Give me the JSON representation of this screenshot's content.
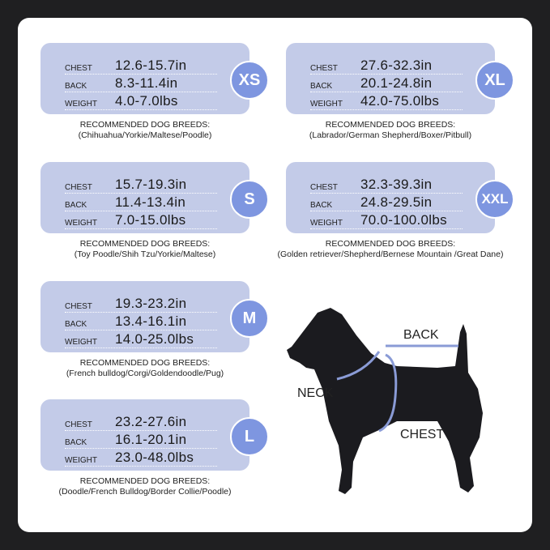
{
  "labels": {
    "chest": "CHEST",
    "back": "BACK",
    "weight": "WEIGHT",
    "recommended": "RECOMMENDED DOG BREEDS:"
  },
  "sizes": [
    {
      "size": "XS",
      "chest": "12.6-15.7in",
      "back": "8.3-11.4in",
      "weight": "4.0-7.0lbs",
      "breeds": "(Chihuahua/Yorkie/Maltese/Poodle)"
    },
    {
      "size": "S",
      "chest": "15.7-19.3in",
      "back": "11.4-13.4in",
      "weight": "7.0-15.0lbs",
      "breeds": "(Toy Poodle/Shih Tzu/Yorkie/Maltese)"
    },
    {
      "size": "M",
      "chest": "19.3-23.2in",
      "back": "13.4-16.1in",
      "weight": "14.0-25.0lbs",
      "breeds": "(French bulldog/Corgi/Goldendoodle/Pug)"
    },
    {
      "size": "L",
      "chest": "23.2-27.6in",
      "back": "16.1-20.1in",
      "weight": "23.0-48.0lbs",
      "breeds": "(Doodle/French Bulldog/Border Collie/Poodle)"
    },
    {
      "size": "XL",
      "chest": "27.6-32.3in",
      "back": "20.1-24.8in",
      "weight": "42.0-75.0lbs",
      "breeds": "(Labrador/German Shepherd/Boxer/Pitbull)"
    },
    {
      "size": "XXL",
      "chest": "32.3-39.3in",
      "back": "24.8-29.5in",
      "weight": "70.0-100.0lbs",
      "breeds": "(Golden retriever/Shepherd/Bernese Mountain /Great Dane)"
    }
  ],
  "diagram": {
    "back": "BACK",
    "neck": "NECK",
    "chest": "CHEST"
  },
  "colors": {
    "card": "#c3cbe8",
    "badge": "#7e96e0",
    "measure_line": "#8a9bd6",
    "dog": "#1b1b1f"
  }
}
